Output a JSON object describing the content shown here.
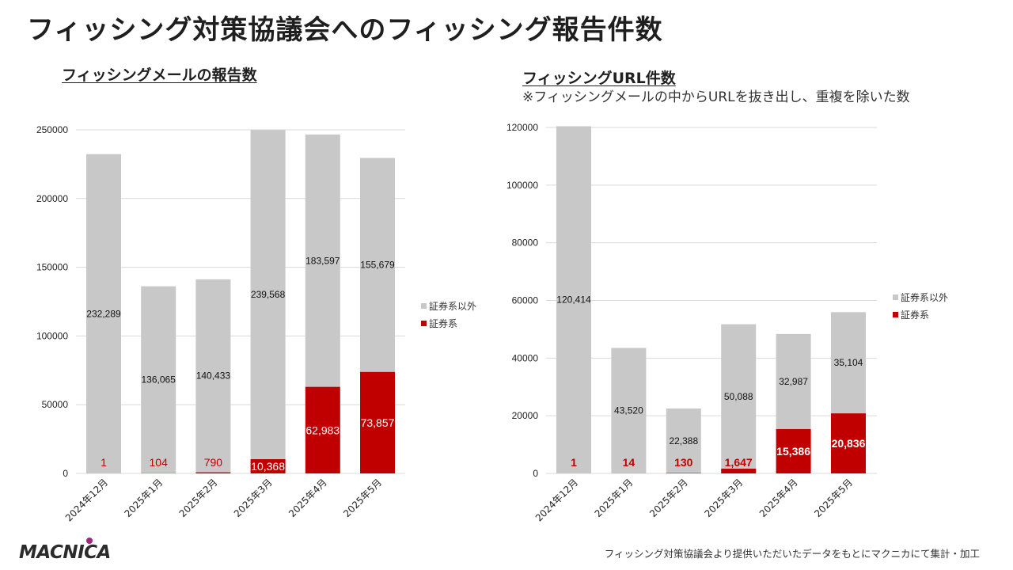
{
  "page": {
    "title": "フィッシング対策協議会へのフィッシング報告件数",
    "footer_note": "フィッシング対策協議会より提供いただいたデータをもとにマクニカにて集計・加工",
    "logo_text": "MACNICA"
  },
  "colors": {
    "gray": "#c8c8c8",
    "red": "#c00000",
    "grid": "#d9d9d9",
    "logo_dot": "#a0287a"
  },
  "chart_data": [
    {
      "type": "bar",
      "stacked": true,
      "title": "フィッシングメールの報告数",
      "categories": [
        "2024年12月",
        "2025年1月",
        "2025年2月",
        "2025年3月",
        "2025年4月",
        "2025年5月"
      ],
      "series": [
        {
          "name": "証券系",
          "values": [
            1,
            104,
            790,
            10368,
            62983,
            73857
          ],
          "labels": [
            "1",
            "104",
            "790",
            "10,368",
            "62,983",
            "73,857"
          ]
        },
        {
          "name": "証券系以外",
          "values": [
            232289,
            136065,
            140433,
            239568,
            183597,
            155679
          ],
          "labels": [
            "232,289",
            "136,065",
            "140,433",
            "239,568",
            "183,597",
            "155,679"
          ]
        }
      ],
      "legend": [
        "証券系以外",
        "証券系"
      ],
      "ylim": [
        0,
        250000
      ],
      "yticks": [
        "0",
        "50000",
        "100000",
        "150000",
        "200000",
        "250000"
      ],
      "legend_position": "right",
      "grid": true
    },
    {
      "type": "bar",
      "stacked": true,
      "title": "フィッシングURL件数",
      "note": "※フィッシングメールの中からURLを抜き出し、重複を除いた数",
      "categories": [
        "2024年12月",
        "2025年1月",
        "2025年2月",
        "2025年3月",
        "2025年4月",
        "2025年5月"
      ],
      "series": [
        {
          "name": "証券系",
          "values": [
            1,
            14,
            130,
            1647,
            15386,
            20836
          ],
          "labels": [
            "1",
            "14",
            "130",
            "1,647",
            "15,386",
            "20,836"
          ]
        },
        {
          "name": "証券系以外",
          "values": [
            120414,
            43520,
            22388,
            50088,
            32987,
            35104
          ],
          "labels": [
            "120,414",
            "43,520",
            "22,388",
            "50,088",
            "32,987",
            "35,104"
          ]
        }
      ],
      "legend": [
        "証券系以外",
        "証券系"
      ],
      "ylim": [
        0,
        120000
      ],
      "yticks": [
        "0",
        "20000",
        "40000",
        "60000",
        "80000",
        "100000",
        "120000"
      ],
      "legend_position": "right",
      "grid": true
    }
  ]
}
